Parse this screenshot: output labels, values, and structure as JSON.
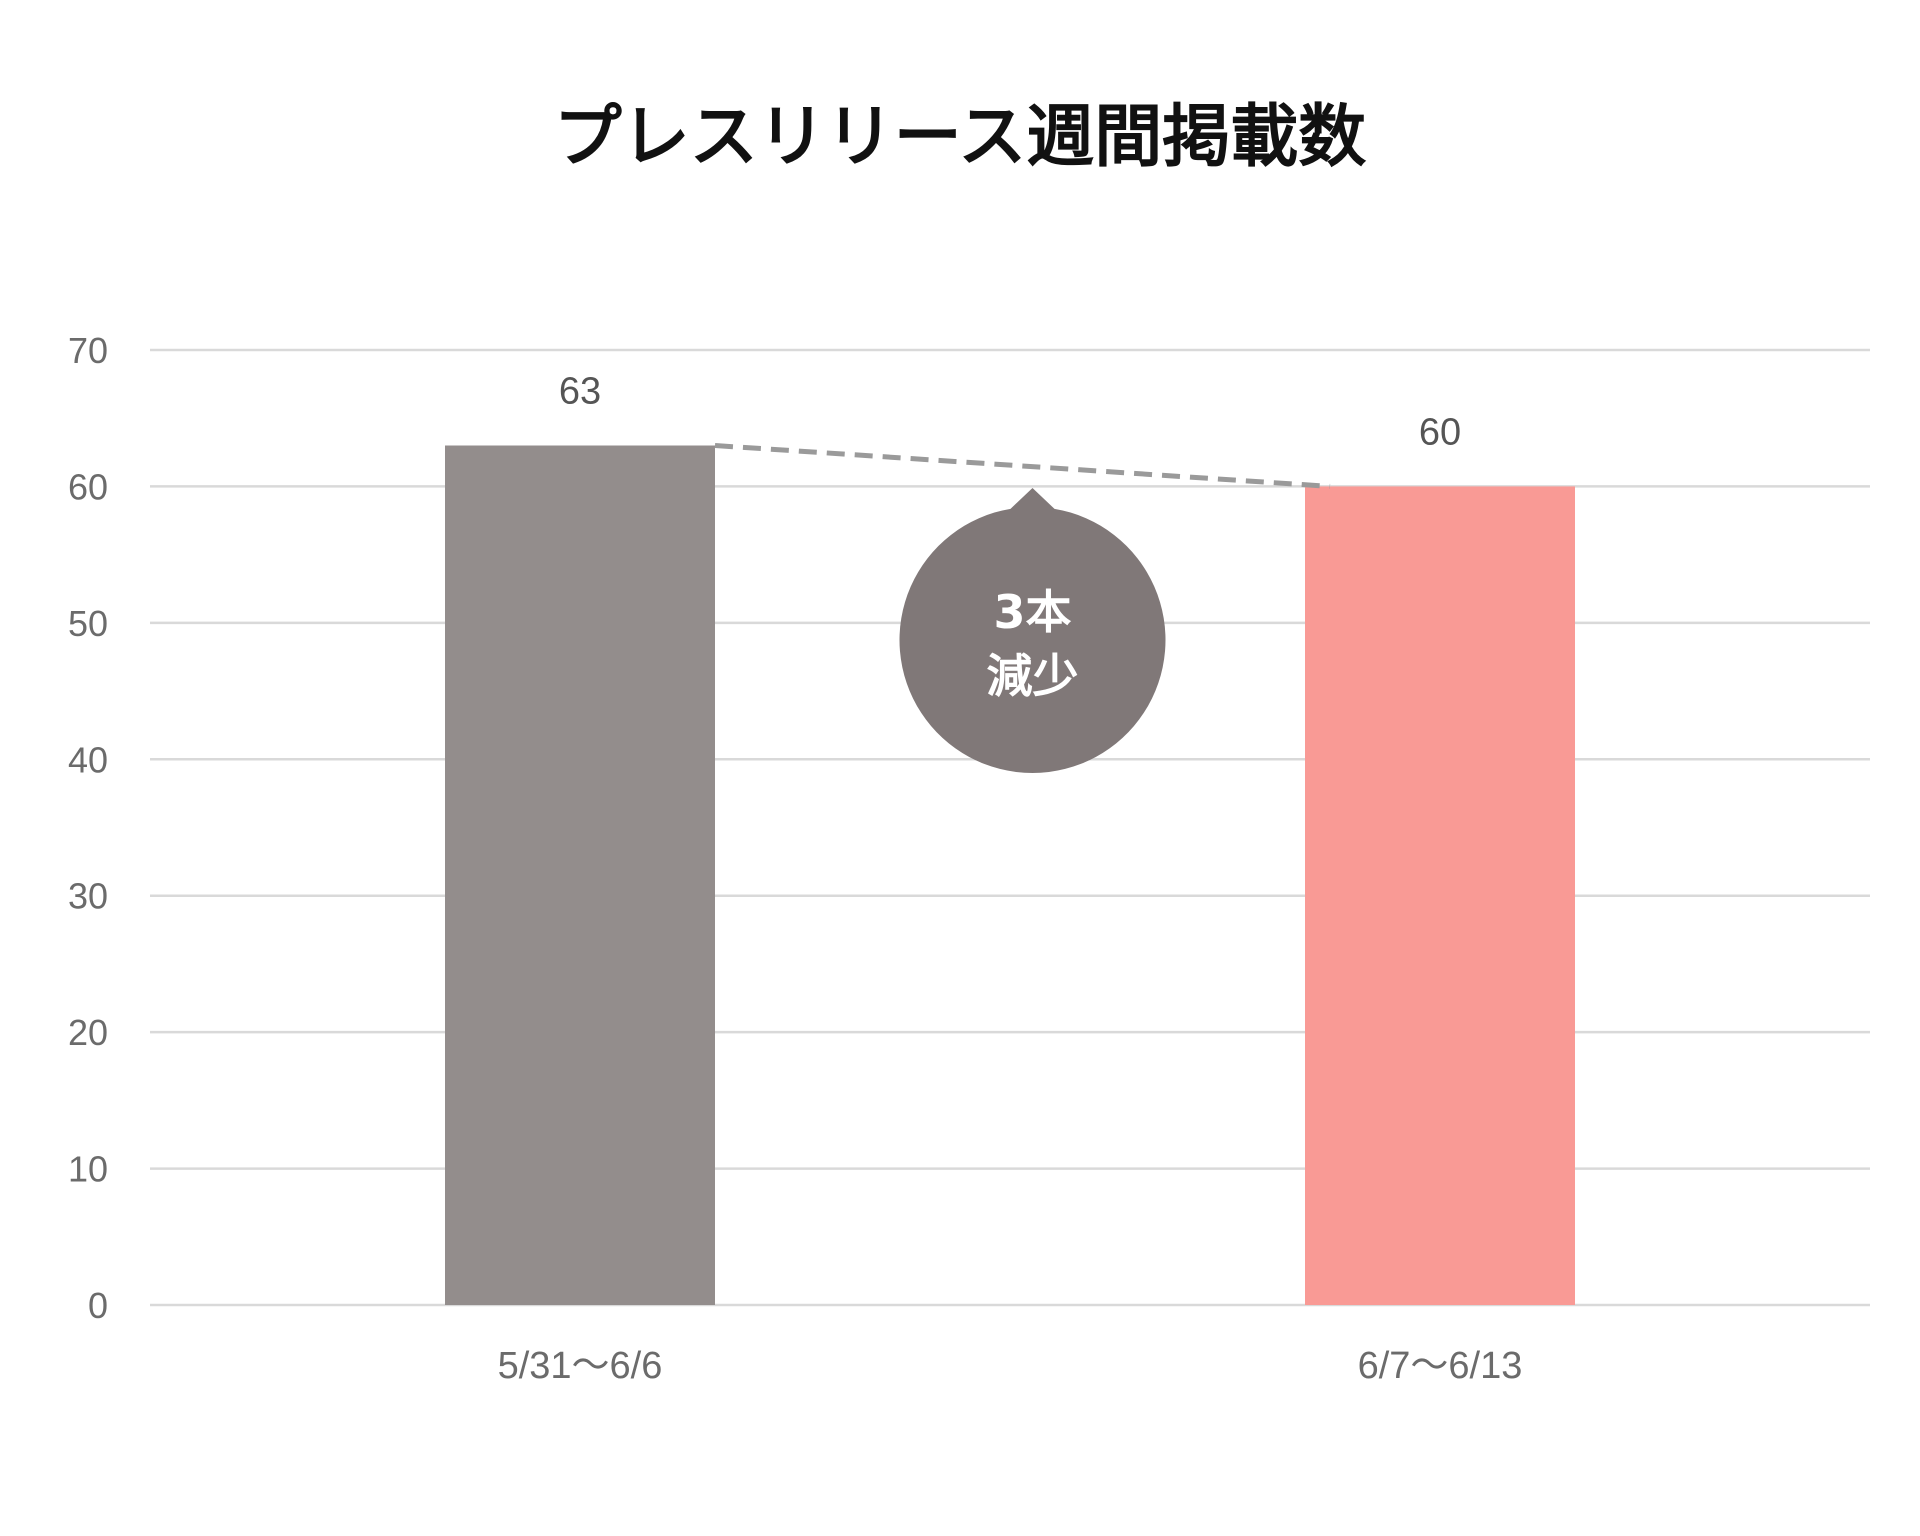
{
  "chart_data": {
    "type": "bar",
    "title": "プレスリリース週間掲載数",
    "xlabel": "",
    "ylabel": "",
    "categories": [
      "5/31〜6/6",
      "6/7〜6/13"
    ],
    "values": [
      63,
      60
    ],
    "bar_colors": [
      "#938d8c",
      "#f99a95"
    ],
    "ylim": [
      0,
      70
    ],
    "yticks": [
      0,
      10,
      20,
      30,
      40,
      50,
      60,
      70
    ],
    "grid": true,
    "legend": "none",
    "annotation": {
      "line1": "3本",
      "line2": "減少",
      "color": "#807878"
    }
  }
}
